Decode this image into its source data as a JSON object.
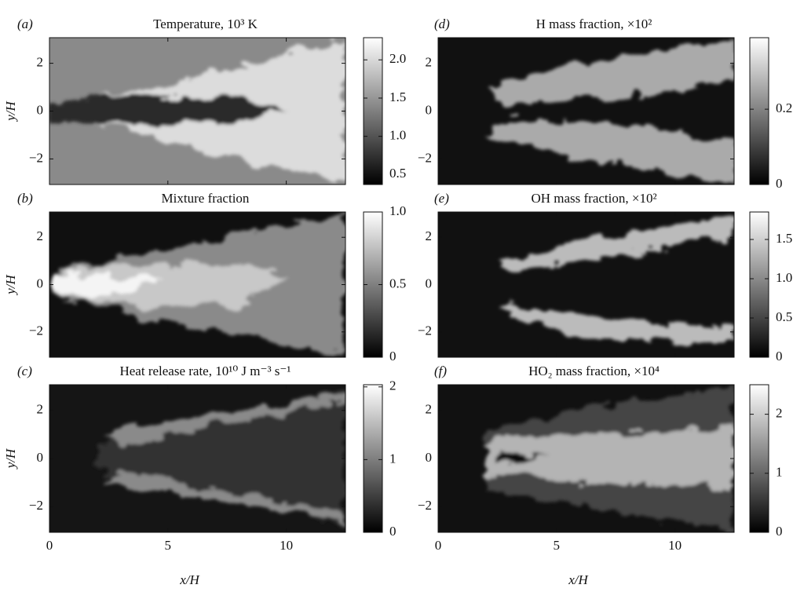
{
  "chart_data": [
    {
      "type": "heatmap",
      "panel_label": "(a)",
      "title": "Temperature, 10³ K",
      "ylabel": "y/H",
      "xlim": [
        0,
        12.5
      ],
      "xticks": [
        0,
        5,
        10
      ],
      "ylim": [
        -3.07,
        3.07
      ],
      "yticks": [
        {
          "value": -2,
          "label": "−2"
        },
        0,
        2
      ],
      "clim": [
        0.37,
        2.29
      ],
      "cticks": [
        0.5,
        {
          "value": 1,
          "label": "1.0"
        },
        1.5,
        {
          "value": 2,
          "label": "2.0"
        }
      ],
      "colormap": "gray"
    },
    {
      "type": "heatmap",
      "panel_label": "(b)",
      "title": "Mixture fraction",
      "ylabel": "y/H",
      "xlim": [
        0,
        12.5
      ],
      "xticks": [
        0,
        5,
        10
      ],
      "ylim": [
        -3.07,
        3.07
      ],
      "yticks": [
        {
          "value": -2,
          "label": "−2"
        },
        0,
        2
      ],
      "clim": [
        0,
        1
      ],
      "cticks": [
        0,
        0.5,
        {
          "value": 1,
          "label": "1.0"
        }
      ],
      "colormap": "gray"
    },
    {
      "type": "heatmap",
      "panel_label": "(c)",
      "title": "Heat release rate, 10¹⁰ J m⁻³ s⁻¹",
      "ylabel": "y/H",
      "xlabel": "x/H",
      "xlim": [
        0,
        12.5
      ],
      "xticks": [
        0,
        5,
        10
      ],
      "ylim": [
        -3.07,
        3.07
      ],
      "yticks": [
        {
          "value": -2,
          "label": "−2"
        },
        0,
        2
      ],
      "clim": [
        0,
        2.03
      ],
      "cticks": [
        0,
        1,
        2
      ],
      "colormap": "gray"
    },
    {
      "type": "heatmap",
      "panel_label": "(d)",
      "title": "H mass fraction, ×10²",
      "xlim": [
        0,
        12.5
      ],
      "xticks": [
        0,
        5,
        10
      ],
      "ylim": [
        -3.07,
        3.07
      ],
      "yticks": [
        {
          "value": -2,
          "label": "−2"
        },
        0,
        2
      ],
      "clim": [
        0,
        0.39
      ],
      "cticks": [
        0,
        0.2
      ],
      "colormap": "gray"
    },
    {
      "type": "heatmap",
      "panel_label": "(e)",
      "title": "OH mass fraction, ×10²",
      "xlim": [
        0,
        12.5
      ],
      "xticks": [
        0,
        5,
        10
      ],
      "ylim": [
        -3.07,
        3.07
      ],
      "yticks": [
        {
          "value": -2,
          "label": "−2"
        },
        0,
        2
      ],
      "clim": [
        0,
        1.85
      ],
      "cticks": [
        0,
        0.5,
        {
          "value": 1,
          "label": "1.0"
        },
        1.5
      ],
      "colormap": "gray"
    },
    {
      "type": "heatmap",
      "panel_label": "(f)",
      "title": "HO₂ mass fraction, ×10⁴",
      "xlabel": "x/H",
      "xlim": [
        0,
        12.5
      ],
      "xticks": [
        0,
        5,
        10
      ],
      "ylim": [
        -3.07,
        3.07
      ],
      "yticks": [
        {
          "value": -2,
          "label": "−2"
        },
        0,
        2
      ],
      "clim": [
        0,
        2.5
      ],
      "cticks": [
        0,
        1,
        2
      ],
      "colormap": "gray"
    }
  ]
}
